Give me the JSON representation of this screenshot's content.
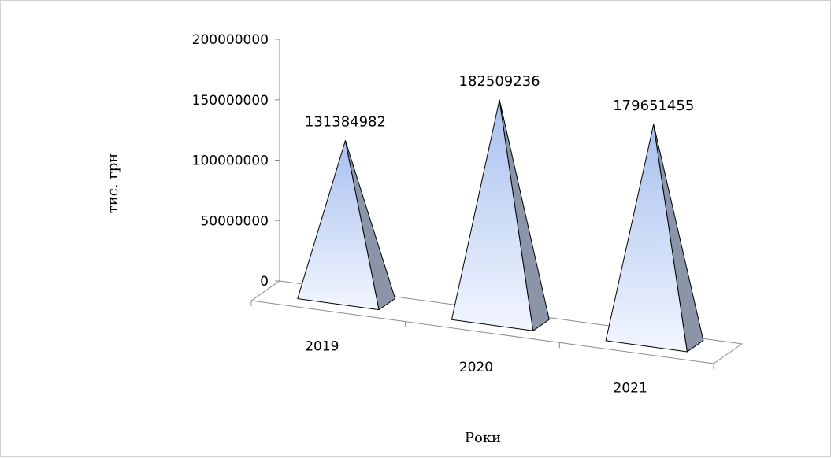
{
  "chart_data": {
    "type": "bar",
    "bar_shape": "pyramid",
    "three_d": true,
    "categories": [
      "2019",
      "2020",
      "2021"
    ],
    "values": [
      131384982,
      182509236,
      179651455
    ],
    "data_labels": [
      "131384982",
      "182509236",
      "179651455"
    ],
    "title": "",
    "xlabel": "Роки",
    "ylabel": "тис. грн",
    "ylim": [
      0,
      200000000
    ],
    "yticks": [
      0,
      50000000,
      100000000,
      150000000,
      200000000
    ],
    "ytick_labels": [
      "0",
      "50000000",
      "100000000",
      "150000000",
      "200000000"
    ],
    "grid": false,
    "legend": "none",
    "colors": {
      "face_light": "#f2f6ff",
      "face_dark": "#a8c0ee",
      "side": "#8a96a8",
      "outline": "#000000"
    }
  }
}
